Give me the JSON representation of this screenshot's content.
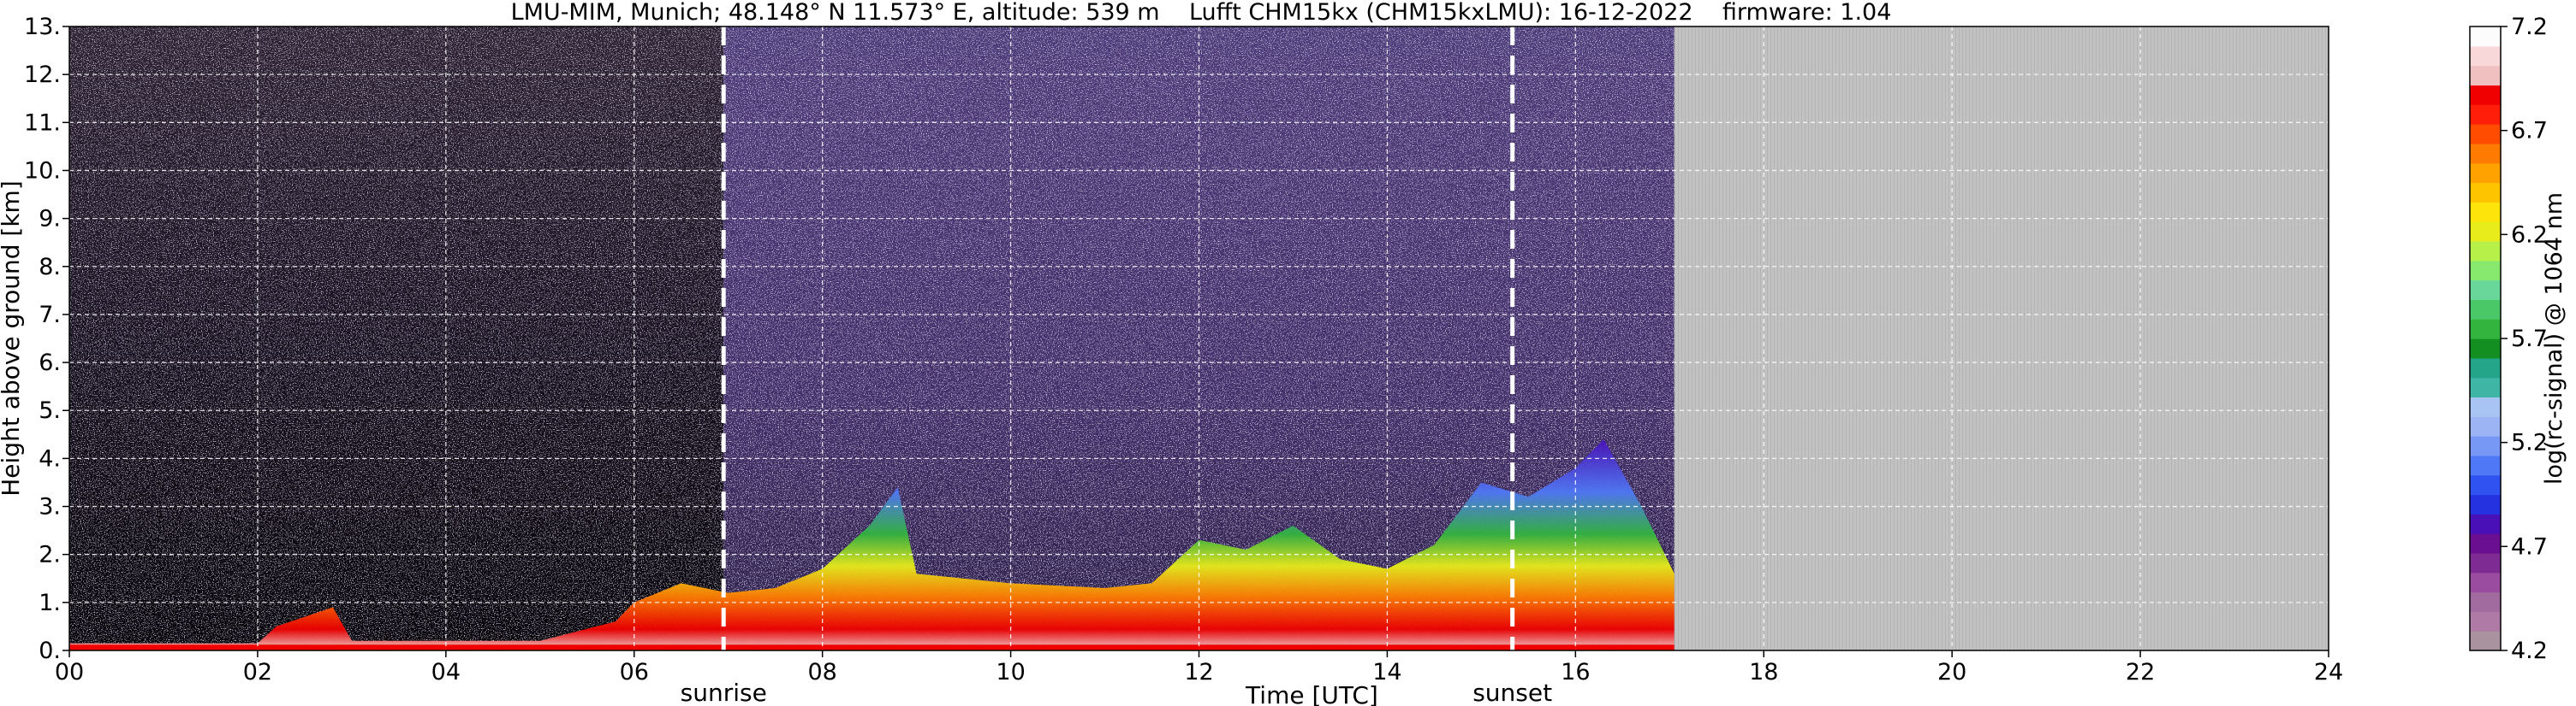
{
  "chart_data": {
    "type": "heatmap",
    "title": "LMU-MIM, Munich; 48.148° N 11.573° E, altitude: 539 m    Lufft CHM15kx (CHM15kxLMU): 16-12-2022    firmware: 1.04",
    "xlabel": "Time [UTC]",
    "ylabel": "Height above ground [km]",
    "xlim": [
      0,
      24
    ],
    "ylim": [
      0,
      13
    ],
    "x_ticks": [
      "00",
      "02",
      "04",
      "06",
      "08",
      "10",
      "12",
      "14",
      "16",
      "18",
      "20",
      "22",
      "24"
    ],
    "y_ticks": [
      "0.",
      "1.",
      "2.",
      "3.",
      "4.",
      "5.",
      "6.",
      "7.",
      "8.",
      "9.",
      "10.",
      "11.",
      "12.",
      "13."
    ],
    "grid": true,
    "markers": [
      {
        "label": "sunrise",
        "time_utc": 6.95
      },
      {
        "label": "sunset",
        "time_utc": 15.33
      }
    ],
    "data_end_time_utc": 17.05,
    "colorbar": {
      "label": "log(rc-signal) @ 1064 nm",
      "range": [
        4.2,
        7.2
      ],
      "ticks": [
        "4.2",
        "4.7",
        "5.2",
        "5.7",
        "6.2",
        "6.7",
        "7.2"
      ],
      "colors": [
        "#a9939f",
        "#b07aa6",
        "#a26ba0",
        "#9a4ca0",
        "#7e2c93",
        "#6a0f8f",
        "#4a10b8",
        "#2432e0",
        "#2f52f0",
        "#4f78f6",
        "#7898f6",
        "#9db4f4",
        "#a8c4f2",
        "#3fb5a6",
        "#24a58a",
        "#138e20",
        "#33b43f",
        "#4ac766",
        "#6ad79a",
        "#86e86c",
        "#b8f04a",
        "#e8ec1a",
        "#fde40a",
        "#ffc400",
        "#ffa200",
        "#ff7a00",
        "#ff4c00",
        "#ff1e0a",
        "#f00000",
        "#f0c0c0",
        "#f8d8d8",
        "#fcfcfc"
      ]
    },
    "profile": [
      {
        "t": 0.0,
        "h": 0.15
      },
      {
        "t": 2.0,
        "h": 0.15
      },
      {
        "t": 2.2,
        "h": 0.5
      },
      {
        "t": 2.8,
        "h": 0.9
      },
      {
        "t": 3.0,
        "h": 0.2
      },
      {
        "t": 5.0,
        "h": 0.2
      },
      {
        "t": 5.8,
        "h": 0.6
      },
      {
        "t": 6.0,
        "h": 1.0
      },
      {
        "t": 6.5,
        "h": 1.4
      },
      {
        "t": 7.0,
        "h": 1.2
      },
      {
        "t": 7.5,
        "h": 1.3
      },
      {
        "t": 8.0,
        "h": 1.7
      },
      {
        "t": 8.5,
        "h": 2.6
      },
      {
        "t": 8.8,
        "h": 3.4
      },
      {
        "t": 9.0,
        "h": 1.6
      },
      {
        "t": 10.0,
        "h": 1.4
      },
      {
        "t": 11.0,
        "h": 1.3
      },
      {
        "t": 11.5,
        "h": 1.4
      },
      {
        "t": 12.0,
        "h": 2.3
      },
      {
        "t": 12.5,
        "h": 2.1
      },
      {
        "t": 13.0,
        "h": 2.6
      },
      {
        "t": 13.5,
        "h": 1.9
      },
      {
        "t": 14.0,
        "h": 1.7
      },
      {
        "t": 14.5,
        "h": 2.2
      },
      {
        "t": 15.0,
        "h": 3.5
      },
      {
        "t": 15.5,
        "h": 3.2
      },
      {
        "t": 16.0,
        "h": 3.8
      },
      {
        "t": 16.3,
        "h": 4.4
      },
      {
        "t": 16.7,
        "h": 3.0
      },
      {
        "t": 17.05,
        "h": 1.6
      }
    ]
  }
}
